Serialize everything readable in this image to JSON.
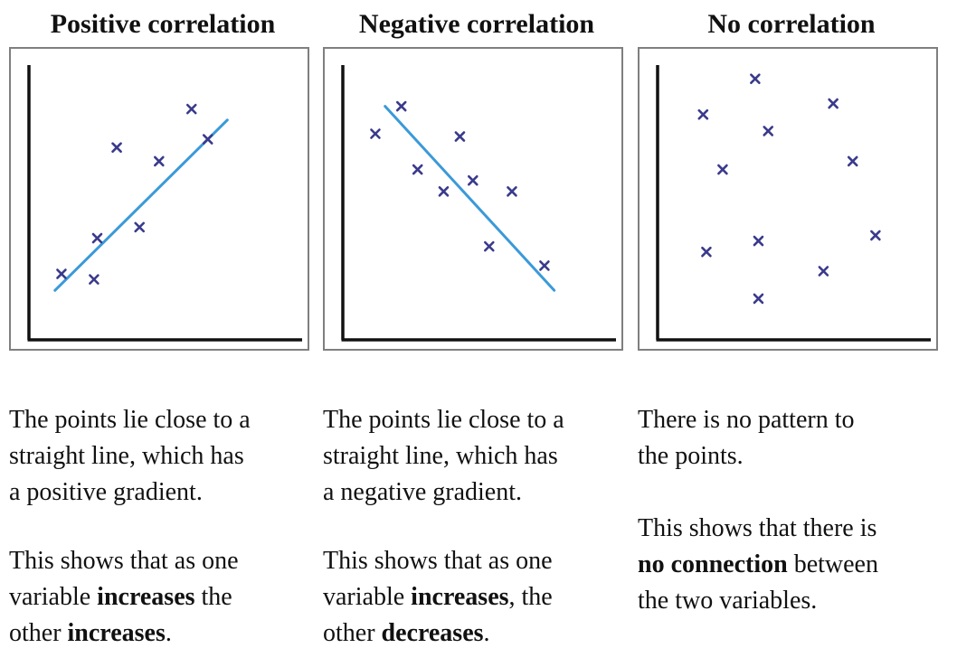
{
  "chart_data": [
    {
      "type": "scatter",
      "title": "Positive correlation",
      "points": [
        {
          "x": 1.0,
          "y": 2.4
        },
        {
          "x": 2.0,
          "y": 2.2
        },
        {
          "x": 2.1,
          "y": 3.7
        },
        {
          "x": 2.7,
          "y": 7.0
        },
        {
          "x": 3.4,
          "y": 4.1
        },
        {
          "x": 4.0,
          "y": 6.5
        },
        {
          "x": 5.0,
          "y": 8.4
        },
        {
          "x": 5.5,
          "y": 7.3
        }
      ],
      "trend_line": {
        "x": [
          0.8,
          6.1
        ],
        "y": [
          1.8,
          8.0
        ]
      },
      "trend_color": "#3a9ad9",
      "marker_color": "#3a3a8c",
      "xlim": [
        0,
        8.4
      ],
      "ylim": [
        0,
        10
      ]
    },
    {
      "type": "scatter",
      "title": "Negative correlation",
      "points": [
        {
          "x": 1.0,
          "y": 7.5
        },
        {
          "x": 1.8,
          "y": 8.5
        },
        {
          "x": 2.3,
          "y": 6.2
        },
        {
          "x": 3.1,
          "y": 5.4
        },
        {
          "x": 3.6,
          "y": 7.4
        },
        {
          "x": 4.0,
          "y": 5.8
        },
        {
          "x": 4.5,
          "y": 3.4
        },
        {
          "x": 5.2,
          "y": 5.4
        },
        {
          "x": 6.2,
          "y": 2.7
        }
      ],
      "trend_line": {
        "x": [
          1.3,
          6.5
        ],
        "y": [
          8.5,
          1.8
        ]
      },
      "trend_color": "#3a9ad9",
      "marker_color": "#3a3a8c",
      "xlim": [
        0,
        8.4
      ],
      "ylim": [
        0,
        10
      ]
    },
    {
      "type": "scatter",
      "title": "No correlation",
      "points": [
        {
          "x": 1.4,
          "y": 8.2
        },
        {
          "x": 3.0,
          "y": 9.5
        },
        {
          "x": 5.4,
          "y": 8.6
        },
        {
          "x": 3.4,
          "y": 7.6
        },
        {
          "x": 2.0,
          "y": 6.2
        },
        {
          "x": 6.0,
          "y": 6.5
        },
        {
          "x": 1.5,
          "y": 3.2
        },
        {
          "x": 3.1,
          "y": 3.6
        },
        {
          "x": 6.7,
          "y": 3.8
        },
        {
          "x": 5.1,
          "y": 2.5
        },
        {
          "x": 3.1,
          "y": 1.5
        }
      ],
      "trend_line": null,
      "marker_color": "#3a3a8c",
      "xlim": [
        0,
        8.4
      ],
      "ylim": [
        0,
        10
      ]
    }
  ],
  "descriptions": [
    {
      "line1": "The points lie close to a",
      "line2": "straight line, which has",
      "line3": "a positive gradient.",
      "s2_line1": "This shows that as one",
      "s2_line2_pre": "variable ",
      "s2_line2_bold": "increases",
      "s2_line2_post": " the",
      "s2_line3_pre": "other ",
      "s2_line3_bold": "increases",
      "s2_line3_post": "."
    },
    {
      "line1": "The points lie close to a",
      "line2": "straight line, which has",
      "line3": "a negative gradient.",
      "s2_line1": "This shows that as one",
      "s2_line2_pre": "variable ",
      "s2_line2_bold": "increases",
      "s2_line2_post": ", the",
      "s2_line3_pre": "other ",
      "s2_line3_bold": "decreases",
      "s2_line3_post": "."
    },
    {
      "line1": "There is no pattern to",
      "line2": "the points.",
      "s2_line1": "This shows that there is",
      "s2_line2_bold": "no connection",
      "s2_line2_post": " between",
      "s2_line3": "the two variables."
    }
  ]
}
